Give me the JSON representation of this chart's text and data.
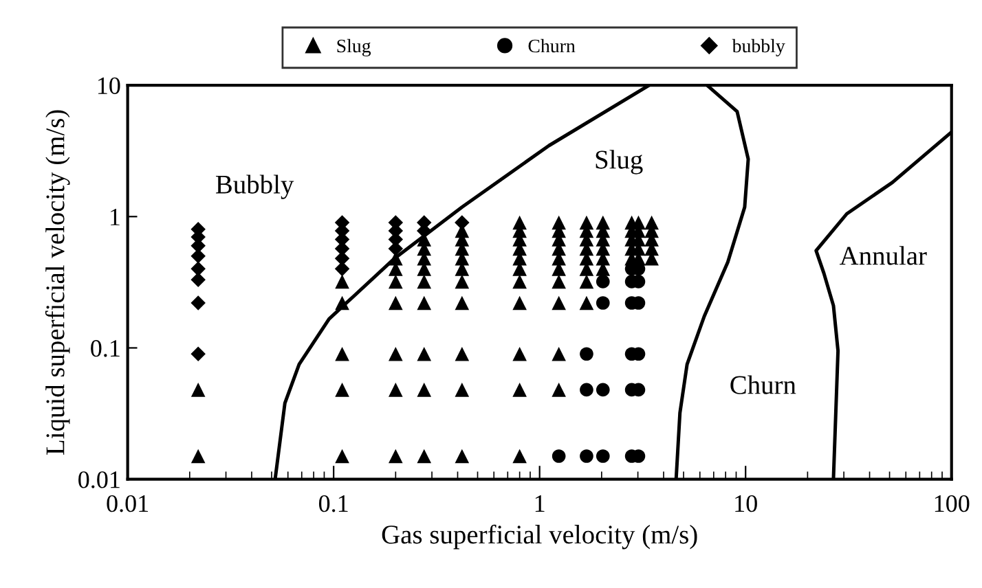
{
  "chart_data": {
    "type": "scatter",
    "xlabel": "Gas superficial velocity (m/s)",
    "ylabel": "Liquid superficial velocity (m/s)",
    "log": "xy",
    "xlim": [
      0.01,
      100
    ],
    "ylim": [
      0.01,
      10
    ],
    "xticks": [
      0.01,
      0.1,
      1,
      10,
      100
    ],
    "yticks": [
      0.01,
      0.1,
      1,
      10
    ],
    "grid": false,
    "legend": "top",
    "series": [
      {
        "name": "Slug",
        "marker": "triangle",
        "color": "#000000",
        "x": [
          0.022,
          0.022,
          0.11,
          0.11,
          0.11,
          0.11,
          0.11,
          0.2,
          0.2,
          0.2,
          0.2,
          0.2,
          0.2,
          0.2,
          0.275,
          0.275,
          0.275,
          0.275,
          0.275,
          0.275,
          0.275,
          0.275,
          0.275,
          0.42,
          0.42,
          0.42,
          0.42,
          0.42,
          0.42,
          0.42,
          0.42,
          0.42,
          0.42,
          0.8,
          0.8,
          0.8,
          0.8,
          0.8,
          0.8,
          0.8,
          0.8,
          0.8,
          0.8,
          0.8,
          1.24,
          1.24,
          1.24,
          1.24,
          1.24,
          1.24,
          1.24,
          1.24,
          1.24,
          1.24,
          1.69,
          1.69,
          1.69,
          1.69,
          1.69,
          1.69,
          1.69,
          1.69,
          2.03,
          2.03,
          2.03,
          2.03,
          2.03,
          2.03,
          2.8,
          2.8,
          2.8,
          2.8,
          2.8,
          3.02,
          3.02,
          3.02,
          3.02,
          3.02,
          3.5,
          3.5,
          3.5,
          3.5,
          3.5
        ],
        "values": [
          0.048,
          0.015,
          0.32,
          0.22,
          0.09,
          0.048,
          0.015,
          0.48,
          0.4,
          0.32,
          0.22,
          0.09,
          0.048,
          0.015,
          0.67,
          0.57,
          0.48,
          0.4,
          0.32,
          0.22,
          0.09,
          0.048,
          0.015,
          0.78,
          0.67,
          0.57,
          0.48,
          0.4,
          0.32,
          0.22,
          0.09,
          0.048,
          0.015,
          0.9,
          0.78,
          0.67,
          0.57,
          0.48,
          0.4,
          0.32,
          0.22,
          0.09,
          0.048,
          0.015,
          0.9,
          0.78,
          0.67,
          0.57,
          0.48,
          0.4,
          0.32,
          0.22,
          0.09,
          0.048,
          0.9,
          0.78,
          0.67,
          0.57,
          0.48,
          0.4,
          0.32,
          0.22,
          0.9,
          0.78,
          0.67,
          0.57,
          0.48,
          0.4,
          0.9,
          0.78,
          0.67,
          0.57,
          0.48,
          0.9,
          0.78,
          0.67,
          0.57,
          0.48,
          0.9,
          0.78,
          0.67,
          0.57,
          0.48
        ]
      },
      {
        "name": "Churn",
        "marker": "circle",
        "color": "#000000",
        "x": [
          1.24,
          1.69,
          1.69,
          1.69,
          2.03,
          2.03,
          2.03,
          2.03,
          2.8,
          2.8,
          2.8,
          2.8,
          2.8,
          2.8,
          3.02,
          3.02,
          3.02,
          3.02,
          3.02,
          3.02
        ],
        "values": [
          0.015,
          0.09,
          0.048,
          0.015,
          0.32,
          0.22,
          0.048,
          0.015,
          0.4,
          0.32,
          0.22,
          0.09,
          0.048,
          0.015,
          0.4,
          0.32,
          0.22,
          0.09,
          0.048,
          0.015
        ]
      },
      {
        "name": "bubbly",
        "marker": "diamond",
        "color": "#000000",
        "x": [
          0.022,
          0.022,
          0.022,
          0.022,
          0.022,
          0.022,
          0.022,
          0.022,
          0.11,
          0.11,
          0.11,
          0.11,
          0.11,
          0.11,
          0.2,
          0.2,
          0.2,
          0.2,
          0.275,
          0.275,
          0.42
        ],
        "values": [
          0.8,
          0.7,
          0.6,
          0.5,
          0.4,
          0.33,
          0.22,
          0.09,
          0.9,
          0.78,
          0.67,
          0.57,
          0.48,
          0.4,
          0.9,
          0.78,
          0.67,
          0.57,
          0.9,
          0.78,
          0.9
        ]
      },
      {
        "type": "line",
        "marker": "none",
        "line_style": "solid",
        "color": "#000000",
        "x": [
          0.052,
          0.058,
          0.068,
          0.095,
          0.196,
          0.42,
          1.11,
          3.4
        ],
        "values": [
          0.01,
          0.038,
          0.075,
          0.166,
          0.475,
          1.18,
          3.47,
          10
        ]
      },
      {
        "type": "line",
        "marker": "none",
        "line_style": "solid",
        "color": "#000000",
        "x": [
          6.5,
          9.1,
          10.3,
          9.9,
          8.2,
          6.3,
          5.2,
          4.8,
          4.6
        ],
        "values": [
          10,
          6.3,
          2.74,
          1.18,
          0.45,
          0.174,
          0.075,
          0.032,
          0.01
        ]
      },
      {
        "type": "line",
        "marker": "none",
        "line_style": "solid",
        "color": "#000000",
        "x": [
          100,
          51.6,
          31,
          22,
          24,
          26.7,
          28.1,
          26.7
        ],
        "values": [
          4.4,
          1.82,
          1.05,
          0.55,
          0.37,
          0.21,
          0.095,
          0.01
        ]
      }
    ],
    "annotations": [
      "Bubbly",
      "Slug",
      "Churn",
      "Annular"
    ]
  }
}
